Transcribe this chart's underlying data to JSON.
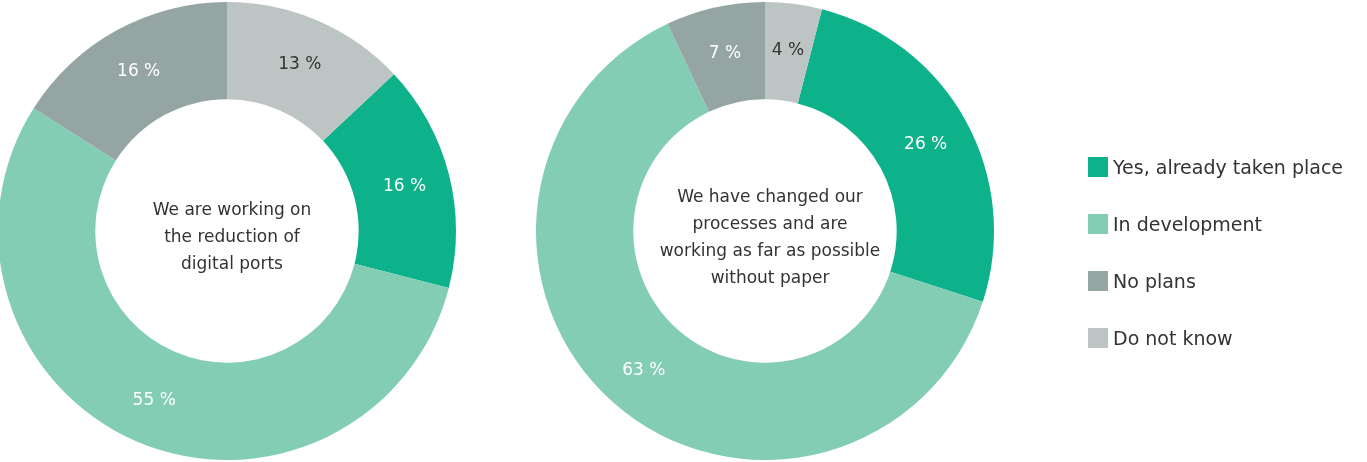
{
  "chart_data": {
    "type": "donut",
    "categories": [
      "Yes, already taken place",
      "In development",
      "No plans",
      "Do not know"
    ],
    "colors": [
      "#0db28b",
      "#84cdb5",
      "#95a5a3",
      "#bcc5c3"
    ],
    "legend": "right",
    "series": [
      {
        "name": "We are working on\nthe reduction of\ndigital ports",
        "values": [
          16,
          55,
          16,
          13
        ],
        "value_labels": [
          "16 %",
          "55 %",
          "16 %",
          "13 %"
        ]
      },
      {
        "name": "We have changed our\nprocesses and are\nworking as far as possible\nwithout paper",
        "values": [
          26,
          63,
          7,
          4
        ],
        "value_labels": [
          "26 %",
          "63 %",
          "7 %",
          "4 %"
        ]
      }
    ]
  }
}
